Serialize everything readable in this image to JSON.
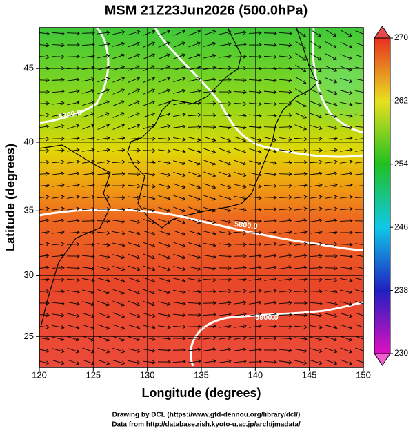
{
  "map": {
    "title": "MSM 21Z23Jun2026 (500.0hPa)",
    "xlabel": "Longitude (degrees)",
    "ylabel": "Latitude  (degrees)",
    "xlim": [
      120,
      150
    ],
    "ylim": [
      22.4,
      47.6
    ],
    "xticks": [
      120,
      125,
      130,
      135,
      140,
      145,
      150
    ],
    "yticks": [
      25,
      30,
      35,
      40,
      45
    ],
    "colorbar": {
      "lim": [
        230,
        270
      ],
      "ticks": [
        230,
        238,
        246,
        254,
        262,
        270
      ]
    },
    "contour_labels": [
      "5700.0",
      "5800.0",
      "5900.0"
    ],
    "credits": [
      "Drawing by DCL (https://www.gfd-dennou.org/library/dcl/)",
      "Data from http://database.rish.kyoto-u.ac.jp/arch/jmadata/"
    ]
  }
}
